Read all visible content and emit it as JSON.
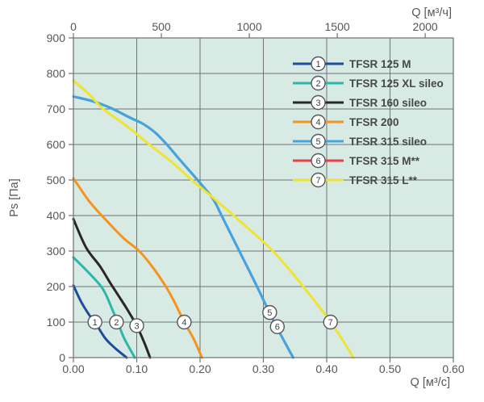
{
  "theme": {
    "page_bg": "#ffffff",
    "plot_bg": "#d8eae4",
    "grid_color": "#707276",
    "frame_color": "#6c6e71",
    "text_color": "#55575b",
    "legend_text_color": "#46484b",
    "marker_fill": "#ffffff",
    "marker_stroke": "#55575b",
    "marker_number_color": "#3f4143"
  },
  "chart_data": {
    "type": "line",
    "title": "",
    "ylabel": "Ps [Па]",
    "xlabel_top": "Q [м³/ч]",
    "xlabel_bottom": "Q [м³/с]",
    "grid": true,
    "legend_position": "top-right-inside",
    "y_axis": {
      "min": 0,
      "max": 900,
      "tick_step": 100,
      "tick_labels": [
        "0",
        "100",
        "200",
        "300",
        "400",
        "500",
        "600",
        "700",
        "800",
        "900"
      ]
    },
    "x_axis_bottom": {
      "min": 0,
      "max": 0.6,
      "tick_step": 0.1,
      "tick_labels": [
        "0.00",
        "0.10",
        "0.20",
        "0.30",
        "0.40",
        "0.50",
        "0.60"
      ]
    },
    "x_axis_top": {
      "unit": "м³/ч",
      "tick_values": [
        0,
        500,
        1000,
        1500,
        2000
      ],
      "tick_labels": [
        "0",
        "500",
        "1000",
        "1500",
        "2000"
      ],
      "seconds_per_hour": 3600
    },
    "draw_order": [
      1,
      2,
      3,
      4,
      6,
      5,
      7
    ],
    "series": [
      {
        "num": 1,
        "name": "TFSR 125 M",
        "color": "#1d4e9e",
        "marker_at": [
          0.034,
          100
        ],
        "points": [
          [
            0,
            203
          ],
          [
            0.012,
            158
          ],
          [
            0.025,
            120
          ],
          [
            0.034,
            100
          ],
          [
            0.05,
            55
          ],
          [
            0.065,
            28
          ],
          [
            0.084,
            0
          ]
        ]
      },
      {
        "num": 2,
        "name": "TFSR 125 XL sileo",
        "color": "#2bb7a9",
        "marker_at": [
          0.068,
          100
        ],
        "points": [
          [
            0,
            282
          ],
          [
            0.022,
            243
          ],
          [
            0.043,
            202
          ],
          [
            0.052,
            175
          ],
          [
            0.062,
            133
          ],
          [
            0.07,
            100
          ],
          [
            0.08,
            55
          ],
          [
            0.097,
            0
          ]
        ]
      },
      {
        "num": 3,
        "name": "TFSR 160 sileo",
        "color": "#28282a",
        "marker_at": [
          0.1,
          90
        ],
        "points": [
          [
            0,
            390
          ],
          [
            0.02,
            310
          ],
          [
            0.042,
            257
          ],
          [
            0.06,
            205
          ],
          [
            0.08,
            150
          ],
          [
            0.092,
            115
          ],
          [
            0.1,
            90
          ],
          [
            0.112,
            42
          ],
          [
            0.121,
            0
          ]
        ]
      },
      {
        "num": 4,
        "name": "TFSR 200",
        "color": "#f6931d",
        "marker_at": [
          0.175,
          100
        ],
        "points": [
          [
            0,
            505
          ],
          [
            0.025,
            440
          ],
          [
            0.05,
            390
          ],
          [
            0.08,
            335
          ],
          [
            0.104,
            300
          ],
          [
            0.125,
            255
          ],
          [
            0.146,
            200
          ],
          [
            0.16,
            155
          ],
          [
            0.175,
            100
          ],
          [
            0.19,
            52
          ],
          [
            0.203,
            0
          ]
        ]
      },
      {
        "num": 5,
        "name": "TFSR 315 sileo",
        "color": "#3ea7e1",
        "marker_at": [
          0.31,
          127
        ],
        "points": [
          [
            0,
            735
          ],
          [
            0.03,
            722
          ],
          [
            0.06,
            702
          ],
          [
            0.09,
            675
          ],
          [
            0.11,
            658
          ],
          [
            0.13,
            632
          ],
          [
            0.15,
            595
          ],
          [
            0.17,
            553
          ],
          [
            0.196,
            500
          ],
          [
            0.22,
            448
          ],
          [
            0.234,
            400
          ],
          [
            0.262,
            300
          ],
          [
            0.29,
            200
          ],
          [
            0.317,
            100
          ],
          [
            0.347,
            0
          ]
        ]
      },
      {
        "num": 6,
        "name": "TFSR 315 M**",
        "color": "#ea3e40",
        "marker_at": [
          0.322,
          87
        ],
        "coincident_with_series": 5,
        "points": [
          [
            0,
            735
          ],
          [
            0.03,
            722
          ],
          [
            0.06,
            702
          ],
          [
            0.09,
            675
          ],
          [
            0.11,
            658
          ],
          [
            0.13,
            632
          ],
          [
            0.15,
            595
          ],
          [
            0.17,
            553
          ],
          [
            0.196,
            500
          ],
          [
            0.22,
            448
          ],
          [
            0.234,
            400
          ],
          [
            0.262,
            300
          ],
          [
            0.29,
            200
          ],
          [
            0.317,
            100
          ],
          [
            0.347,
            0
          ]
        ]
      },
      {
        "num": 7,
        "name": "TFSR 315 L**",
        "color": "#eee431",
        "marker_at": [
          0.406,
          100
        ],
        "points": [
          [
            0,
            780
          ],
          [
            0.025,
            741
          ],
          [
            0.047,
            700
          ],
          [
            0.085,
            651
          ],
          [
            0.12,
            600
          ],
          [
            0.155,
            551
          ],
          [
            0.187,
            500
          ],
          [
            0.22,
            451
          ],
          [
            0.253,
            400
          ],
          [
            0.285,
            350
          ],
          [
            0.315,
            300
          ],
          [
            0.34,
            250
          ],
          [
            0.363,
            200
          ],
          [
            0.385,
            150
          ],
          [
            0.406,
            100
          ],
          [
            0.425,
            50
          ],
          [
            0.442,
            0
          ]
        ]
      }
    ]
  }
}
